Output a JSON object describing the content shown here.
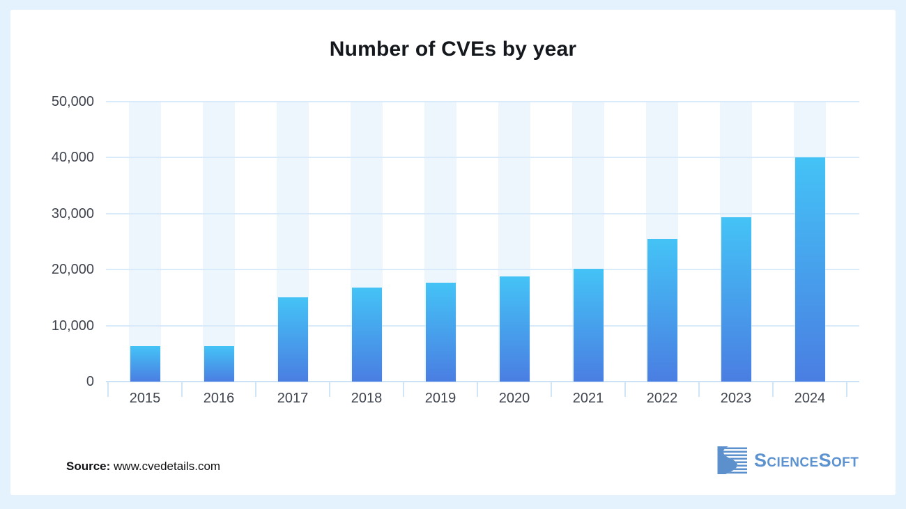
{
  "chart_data": {
    "type": "bar",
    "title": "Number of CVEs by year",
    "categories": [
      "2015",
      "2016",
      "2017",
      "2018",
      "2019",
      "2020",
      "2021",
      "2022",
      "2023",
      "2024"
    ],
    "values": [
      6400,
      6400,
      15000,
      16800,
      17700,
      18800,
      20200,
      25500,
      29400,
      40100
    ],
    "xlabel": "",
    "ylabel": "",
    "ylim": [
      0,
      50000
    ],
    "ytick_step": 10000,
    "ytick_labels": [
      "0",
      "10,000",
      "20,000",
      "30,000",
      "40,000",
      "50,000"
    ],
    "grid": true,
    "legend": "none",
    "colors": {
      "bar_gradient_top": "#44C3F6",
      "bar_gradient_bottom": "#4A7EE2",
      "column_background": "#EDF5FD",
      "gridline": "#D9EBFA",
      "axis": "#CBE2F6",
      "tick": "#CFE6F8",
      "label_text": "#3E434D",
      "title_text": "#14171C"
    }
  },
  "footer": {
    "source_label": "Source:",
    "source_value": " www.cvedetails.com",
    "logo_text": "ScienceSoft",
    "logo_color": "#5C92CF"
  },
  "frame": {
    "background": "#E4F2FE",
    "card_background": "#FFFFFF"
  }
}
